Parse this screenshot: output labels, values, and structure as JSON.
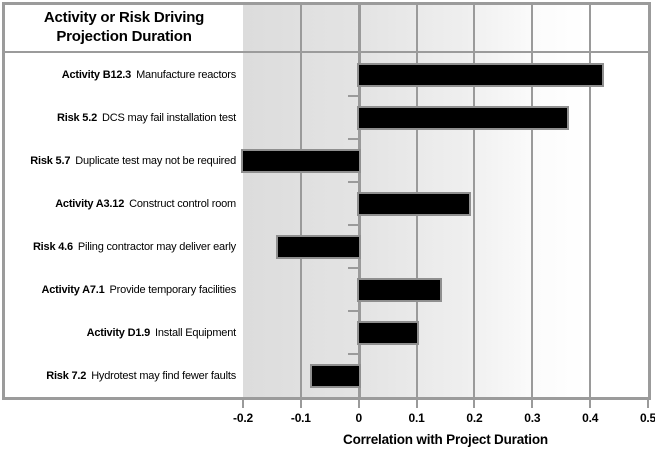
{
  "header": {
    "title_line1": "Activity or Risk Driving",
    "title_line2": "Projection Duration"
  },
  "chart_data": {
    "type": "bar",
    "orientation": "horizontal",
    "title": "Activity or Risk Driving Projection Duration",
    "xlabel": "Correlation with Project Duration",
    "xlim": [
      -0.2,
      0.5
    ],
    "xticks": [
      -0.2,
      -0.1,
      0,
      0.1,
      0.2,
      0.3,
      0.4,
      0.5
    ],
    "xtick_labels": [
      "-0.2",
      "-0.1",
      "0",
      "0.1",
      "0.2",
      "0.3",
      "0.4",
      "0.5"
    ],
    "grid": true,
    "legend": false,
    "bar_color": "#000000",
    "plot_bg_gradient": [
      "#dcdcdc",
      "#ffffff"
    ],
    "rows": [
      {
        "code": "Activity B12.3",
        "description": "Manufacture reactors",
        "value": 0.42
      },
      {
        "code": "Risk 5.2",
        "description": "DCS may fail installation test",
        "value": 0.36
      },
      {
        "code": "Risk 5.7",
        "description": "Duplicate test may not be required",
        "value": -0.2
      },
      {
        "code": "Activity A3.12",
        "description": "Construct control room",
        "value": 0.19
      },
      {
        "code": "Risk 4.6",
        "description": "Piling contractor may deliver early",
        "value": -0.14
      },
      {
        "code": "Activity A7.1",
        "description": "Provide temporary facilities",
        "value": 0.14
      },
      {
        "code": "Activity D1.9",
        "description": "Install Equipment",
        "value": 0.1
      },
      {
        "code": "Risk 7.2",
        "description": "Hydrotest may find fewer faults",
        "value": -0.08
      }
    ]
  }
}
